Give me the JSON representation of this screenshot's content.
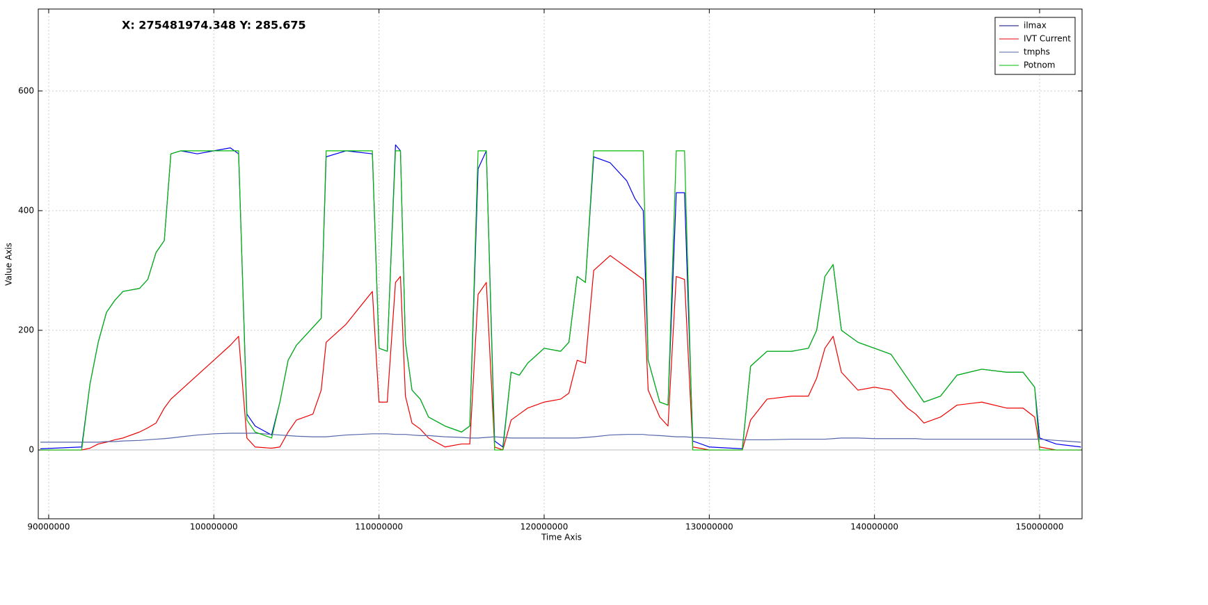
{
  "chart_data": {
    "type": "line",
    "annotation": "X: 275481974.348 Y: 285.675",
    "x_label": "Time Axis",
    "y_label": "Value Axis",
    "xlim": [
      89370000,
      152570000
    ],
    "ylim": [
      -115,
      737
    ],
    "xticks": [
      90000000,
      100000000,
      110000000,
      120000000,
      130000000,
      140000000,
      150000000
    ],
    "yticks": [
      0,
      200,
      400,
      600
    ],
    "grid": true,
    "legend": "upper right",
    "x": [
      89500000,
      92000000,
      92500000,
      93000000,
      93500000,
      94000000,
      94500000,
      95500000,
      96000000,
      96500000,
      97000000,
      97400000,
      98000000,
      99000000,
      100000000,
      101000000,
      101500000,
      102000000,
      102500000,
      103500000,
      104000000,
      104500000,
      105000000,
      106000000,
      106500000,
      106800000,
      108000000,
      109600000,
      110000000,
      110500000,
      111000000,
      111300000,
      111600000,
      112000000,
      112500000,
      113000000,
      114000000,
      115000000,
      115500000,
      116000000,
      116500000,
      117000000,
      117500000,
      118000000,
      118500000,
      119000000,
      120000000,
      121000000,
      121500000,
      122000000,
      122500000,
      123000000,
      124000000,
      125000000,
      125500000,
      126000000,
      126300000,
      127000000,
      127500000,
      128000000,
      128500000,
      129000000,
      130000000,
      132000000,
      132500000,
      133500000,
      135000000,
      136000000,
      136500000,
      137000000,
      137500000,
      138000000,
      139000000,
      140000000,
      141000000,
      142000000,
      142500000,
      143000000,
      144000000,
      145000000,
      146500000,
      148000000,
      149000000,
      149700000,
      150000000,
      151000000,
      152500000
    ],
    "series": [
      {
        "name": "ilmax",
        "color": "#0000ee",
        "legend_color": "#00007a",
        "values": [
          2,
          5,
          110,
          180,
          230,
          250,
          265,
          270,
          285,
          330,
          350,
          495,
          500,
          495,
          500,
          505,
          495,
          60,
          40,
          25,
          80,
          150,
          175,
          205,
          220,
          490,
          500,
          495,
          170,
          165,
          510,
          500,
          180,
          100,
          85,
          55,
          40,
          30,
          40,
          470,
          500,
          15,
          5,
          130,
          125,
          145,
          170,
          165,
          180,
          290,
          280,
          490,
          480,
          450,
          420,
          400,
          150,
          80,
          75,
          430,
          430,
          15,
          5,
          2,
          140,
          165,
          165,
          170,
          200,
          290,
          310,
          200,
          180,
          170,
          160,
          120,
          100,
          80,
          90,
          125,
          135,
          130,
          130,
          105,
          20,
          10,
          5
        ]
      },
      {
        "name": "IVT Current",
        "color": "#ee0000",
        "values": [
          0,
          0,
          3,
          10,
          13,
          17,
          20,
          30,
          37,
          45,
          70,
          85,
          100,
          125,
          150,
          175,
          190,
          20,
          5,
          3,
          5,
          30,
          50,
          60,
          100,
          180,
          210,
          265,
          80,
          80,
          280,
          290,
          90,
          45,
          35,
          20,
          5,
          10,
          10,
          260,
          280,
          5,
          0,
          50,
          60,
          70,
          80,
          85,
          95,
          150,
          145,
          300,
          325,
          305,
          295,
          285,
          100,
          55,
          40,
          290,
          285,
          5,
          0,
          0,
          50,
          85,
          90,
          90,
          120,
          170,
          190,
          130,
          100,
          105,
          100,
          70,
          60,
          45,
          55,
          75,
          80,
          70,
          70,
          55,
          5,
          0,
          0
        ]
      },
      {
        "name": "tmphs",
        "color": "#5566aa",
        "values": [
          13,
          13,
          13,
          13,
          14,
          14,
          15,
          16,
          17,
          18,
          19,
          20,
          22,
          25,
          27,
          28,
          28,
          28,
          28,
          26,
          25,
          24,
          23,
          22,
          22,
          22,
          25,
          27,
          27,
          27,
          26,
          26,
          26,
          25,
          24,
          24,
          22,
          21,
          20,
          20,
          21,
          22,
          21,
          20,
          20,
          20,
          20,
          20,
          20,
          20,
          21,
          22,
          25,
          26,
          26,
          26,
          25,
          24,
          23,
          22,
          22,
          21,
          20,
          17,
          17,
          17,
          18,
          18,
          18,
          18,
          19,
          20,
          20,
          19,
          19,
          19,
          19,
          18,
          18,
          18,
          18,
          18,
          18,
          18,
          18,
          16,
          13
        ]
      },
      {
        "name": "Potnom",
        "color": "#00bb00",
        "values": [
          0,
          0,
          110,
          180,
          230,
          250,
          265,
          270,
          285,
          330,
          350,
          495,
          500,
          500,
          500,
          500,
          500,
          50,
          30,
          20,
          80,
          150,
          175,
          205,
          220,
          500,
          500,
          500,
          170,
          165,
          500,
          500,
          180,
          100,
          85,
          55,
          40,
          30,
          40,
          500,
          500,
          0,
          0,
          130,
          125,
          145,
          170,
          165,
          180,
          290,
          280,
          500,
          500,
          500,
          500,
          500,
          150,
          80,
          75,
          500,
          500,
          0,
          0,
          0,
          140,
          165,
          165,
          170,
          200,
          290,
          310,
          200,
          180,
          170,
          160,
          120,
          100,
          80,
          90,
          125,
          135,
          130,
          130,
          105,
          0,
          0,
          0
        ]
      }
    ]
  }
}
